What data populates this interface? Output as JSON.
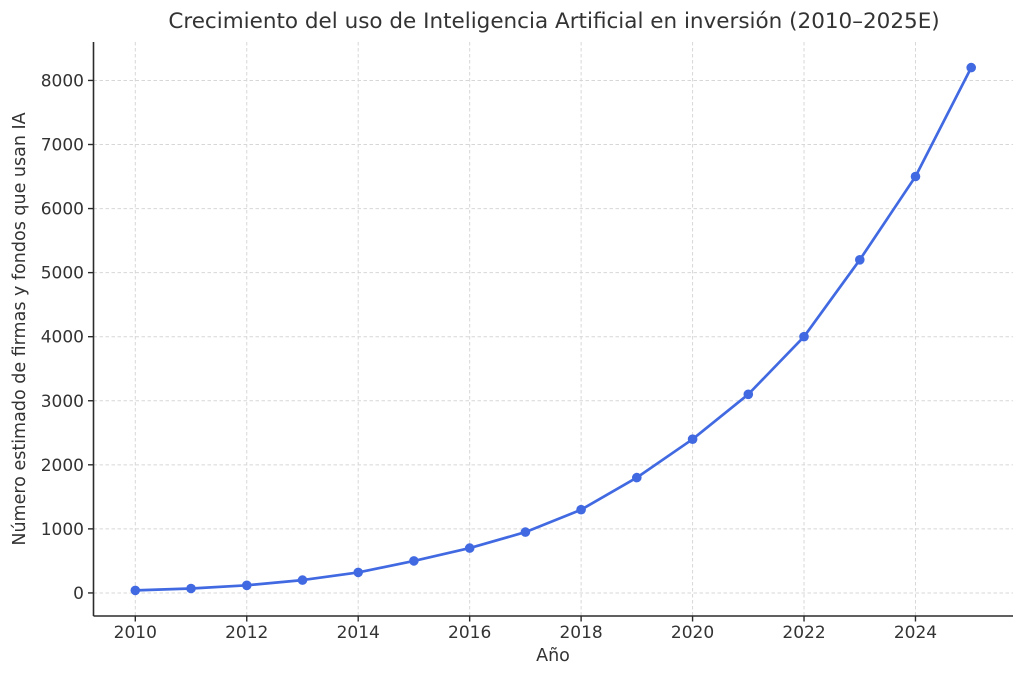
{
  "chart_data": {
    "type": "line",
    "title": "Crecimiento del uso de Inteligencia Artificial en inversión (2010–2025E)",
    "xlabel": "Año",
    "ylabel": "Número estimado de firmas y fondos que usan IA",
    "x": [
      2010,
      2011,
      2012,
      2013,
      2014,
      2015,
      2016,
      2017,
      2018,
      2019,
      2020,
      2021,
      2022,
      2023,
      2024,
      2025
    ],
    "y": [
      40,
      70,
      120,
      200,
      320,
      500,
      700,
      950,
      1300,
      1800,
      2400,
      3100,
      4000,
      5200,
      6500,
      8200
    ],
    "xlim": [
      2009.25,
      2025.75
    ],
    "ylim": [
      -360,
      8600
    ],
    "xticks": [
      2010,
      2012,
      2014,
      2016,
      2018,
      2020,
      2022,
      2024
    ],
    "yticks": [
      0,
      1000,
      2000,
      3000,
      4000,
      5000,
      6000,
      7000,
      8000
    ],
    "grid": true,
    "grid_style": "dashed",
    "legend": "none",
    "marker": "circle",
    "colors": {
      "line": "#4169E1",
      "marker": "#4169E1",
      "grid": "#d7d7d7",
      "spine": "#2b2b2b",
      "tick": "#2b2b2b",
      "text": "#333333",
      "background": "#ffffff"
    }
  }
}
